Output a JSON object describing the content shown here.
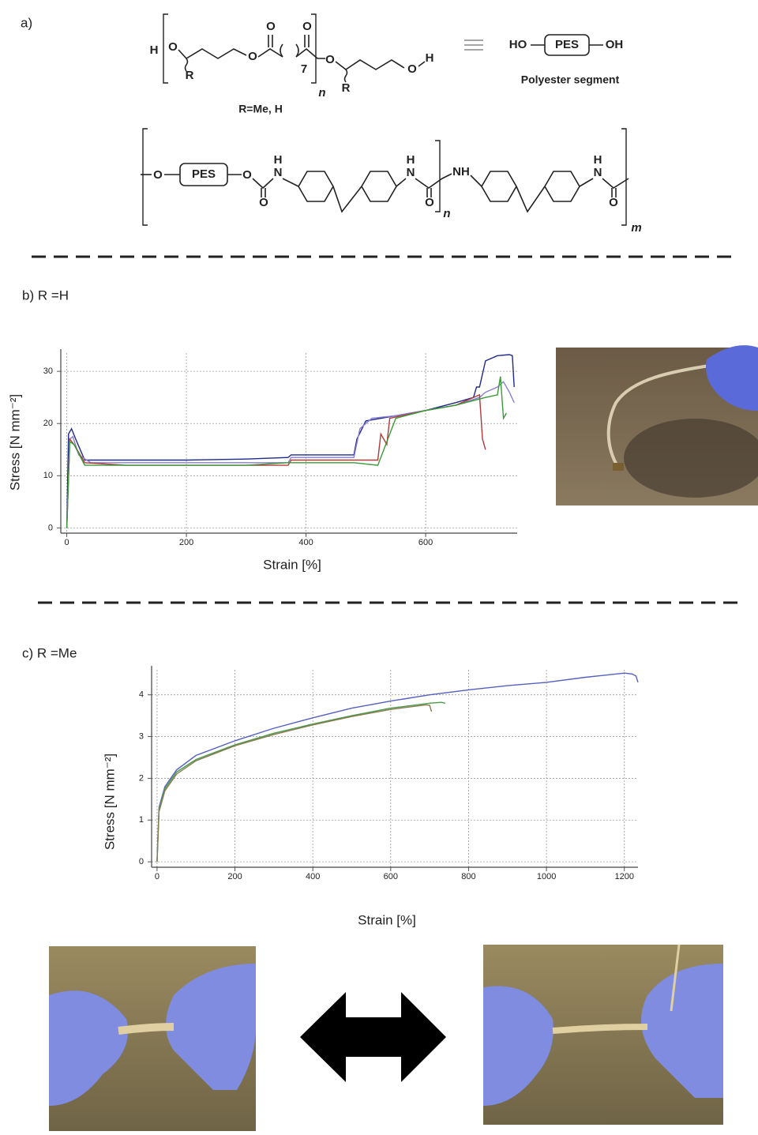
{
  "figure": {
    "panel_a": "a)",
    "monomer": {
      "atoms": [
        "H",
        "O",
        "R",
        "O",
        "O",
        "O",
        "O",
        "R",
        "O",
        "H"
      ],
      "repeat": "7",
      "index": "n",
      "substituent": "R=Me, H"
    },
    "equivalent": {
      "left": "HO",
      "box": "PES",
      "right": "OH",
      "caption": "Polyester segment"
    },
    "polymer": {
      "atoms": [
        "O",
        "O",
        "O",
        "H",
        "N",
        "H",
        "N",
        "O",
        "NH",
        "H",
        "N",
        "O"
      ],
      "box": "PES",
      "index_n": "n",
      "index_m": "m"
    }
  },
  "chart_data": [
    {
      "type": "line",
      "title": "b) R =H",
      "x_label": "Strain [%]",
      "y_label": "Stress [N mm⁻²]",
      "grid": true,
      "xlim": [
        -10,
        753
      ],
      "ylim": [
        -1,
        33.5
      ],
      "xticks": [
        0,
        200,
        400,
        600
      ],
      "yticks": [
        0,
        10,
        20,
        30
      ],
      "series": [
        {
          "color": "#1f2a8a",
          "x": [
            0,
            3,
            8,
            15,
            30,
            100,
            200,
            300,
            370,
            375,
            480,
            485,
            500,
            550,
            600,
            650,
            680,
            685,
            690,
            700,
            720,
            740,
            745,
            748
          ],
          "values": [
            0,
            18,
            19,
            17,
            13,
            13,
            13,
            13.2,
            13.5,
            14,
            14,
            17,
            20.5,
            21.5,
            22.5,
            24,
            25,
            27,
            27,
            32,
            33,
            33.2,
            33,
            27
          ]
        },
        {
          "color": "#8a7fd0",
          "x": [
            0,
            5,
            10,
            20,
            40,
            100,
            200,
            300,
            370,
            375,
            480,
            490,
            510,
            550,
            600,
            650,
            690,
            700,
            720,
            730,
            740,
            748
          ],
          "values": [
            0,
            17,
            17.5,
            14,
            12.5,
            12.5,
            12.5,
            12.5,
            12.5,
            13.5,
            13.5,
            19,
            21,
            21.5,
            22.5,
            23.5,
            25,
            26,
            27,
            28,
            26,
            24
          ]
        },
        {
          "color": "#b03a3a",
          "x": [
            0,
            5,
            12,
            30,
            100,
            200,
            300,
            370,
            375,
            480,
            520,
            525,
            535,
            540,
            600,
            650,
            690,
            695,
            700
          ],
          "values": [
            0,
            17,
            16,
            12.5,
            12,
            12,
            12,
            12,
            13,
            13,
            13,
            18,
            16,
            21,
            22.5,
            23.5,
            25.5,
            17,
            15
          ]
        },
        {
          "color": "#3a9a3a",
          "x": [
            0,
            5,
            12,
            30,
            100,
            200,
            300,
            370,
            375,
            480,
            520,
            530,
            550,
            600,
            650,
            700,
            720,
            725,
            730,
            735
          ],
          "values": [
            0,
            16.5,
            16,
            12,
            12,
            12,
            12,
            12.5,
            12.5,
            12.5,
            12,
            15,
            21,
            22.5,
            23.5,
            25,
            25.5,
            29,
            21,
            22
          ]
        }
      ]
    },
    {
      "type": "line",
      "title": "c) R =Me",
      "x_label": "Strain [%]",
      "y_label": "Stress [N mm⁻²]",
      "grid": true,
      "xlim": [
        -14,
        1235
      ],
      "ylim": [
        -0.13,
        4.6
      ],
      "xticks": [
        0,
        200,
        400,
        600,
        800,
        1000,
        1200
      ],
      "yticks": [
        0,
        1,
        2,
        3,
        4
      ],
      "series": [
        {
          "color": "#5560c0",
          "x": [
            0,
            5,
            20,
            50,
            100,
            200,
            300,
            400,
            500,
            600,
            700,
            800,
            900,
            1000,
            1100,
            1200,
            1220,
            1230,
            1235
          ],
          "values": [
            0,
            1.3,
            1.8,
            2.2,
            2.55,
            2.9,
            3.2,
            3.45,
            3.68,
            3.85,
            4.0,
            4.12,
            4.22,
            4.3,
            4.42,
            4.52,
            4.5,
            4.45,
            4.3
          ]
        },
        {
          "color": "#4a9a4a",
          "x": [
            0,
            5,
            20,
            50,
            100,
            200,
            300,
            400,
            500,
            600,
            700,
            730,
            740
          ],
          "values": [
            0,
            1.25,
            1.75,
            2.15,
            2.45,
            2.8,
            3.08,
            3.3,
            3.5,
            3.68,
            3.8,
            3.82,
            3.8
          ]
        },
        {
          "color": "#8a7a50",
          "x": [
            0,
            5,
            20,
            50,
            100,
            200,
            300,
            400,
            500,
            600,
            690,
            700,
            705
          ],
          "values": [
            0,
            1.2,
            1.7,
            2.1,
            2.42,
            2.78,
            3.05,
            3.28,
            3.48,
            3.65,
            3.76,
            3.75,
            3.6
          ]
        }
      ]
    }
  ]
}
